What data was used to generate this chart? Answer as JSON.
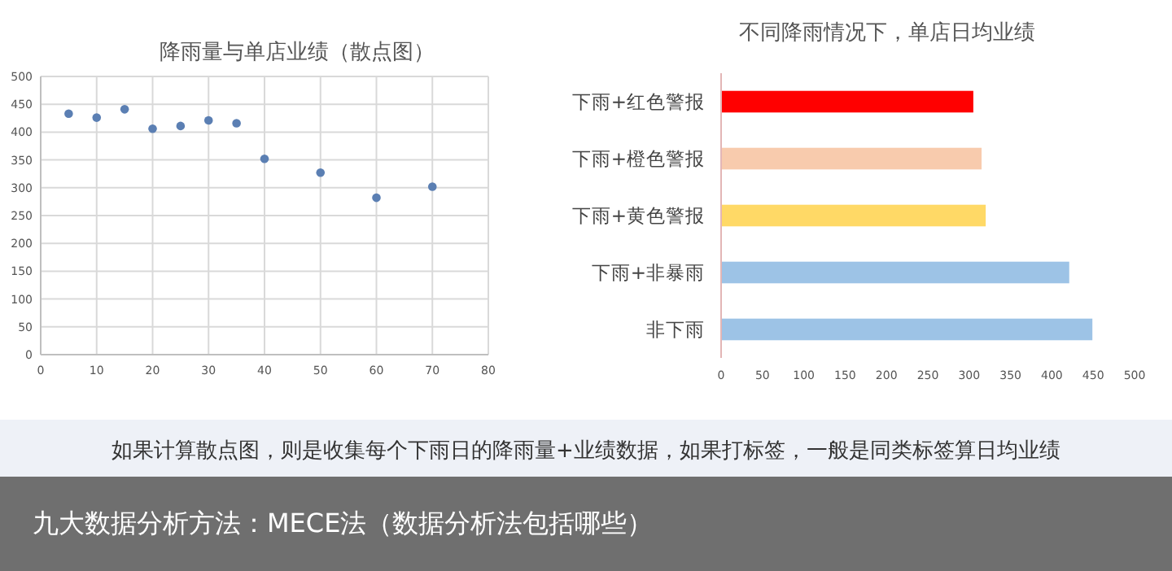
{
  "chart_data": [
    {
      "type": "scatter",
      "title": "降雨量与单店业绩（散点图）",
      "x": [
        5,
        10,
        15,
        20,
        25,
        30,
        35,
        40,
        50,
        60,
        70
      ],
      "series": [
        {
          "color": "#5b7fb3",
          "values": [
            433,
            426,
            441,
            406,
            411,
            421,
            416,
            352,
            327,
            282,
            302
          ]
        }
      ],
      "xlim": [
        0,
        80
      ],
      "xticks": [
        0,
        10,
        20,
        30,
        40,
        50,
        60,
        70,
        80
      ],
      "ylim": [
        0,
        500
      ],
      "yticks": [
        0,
        50,
        100,
        150,
        200,
        250,
        300,
        350,
        400,
        450,
        500
      ],
      "grid": true,
      "marker": "circle",
      "annotations": [
        "如果计算散点图，则是收集每个下雨日的降雨量+业绩数据，如果打标签，一般是同类标签算日均业绩",
        "九大数据分析方法：MECE法（数据分析法包括哪些）"
      ]
    },
    {
      "type": "bar",
      "orientation": "horizontal",
      "title": "不同降雨情况下，单店日均业绩",
      "categories": [
        "下雨+红色警报",
        "下雨+橙色警报",
        "下雨+黄色警报",
        "下雨+非暴雨",
        "非下雨"
      ],
      "values": [
        305,
        315,
        320,
        421,
        449
      ],
      "colors": [
        "#ff0000",
        "#f8cbad",
        "#ffd966",
        "#9dc3e6",
        "#9dc3e6"
      ],
      "xlim": [
        0,
        500
      ],
      "xticks": [
        0,
        50,
        100,
        150,
        200,
        250,
        300,
        350,
        400,
        450,
        500
      ],
      "grid": false
    }
  ]
}
